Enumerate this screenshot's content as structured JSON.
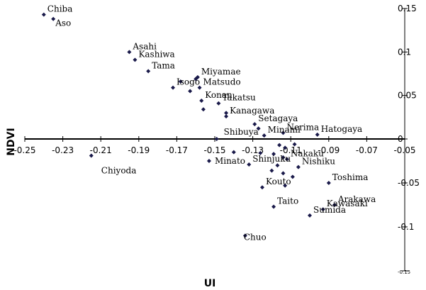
{
  "chart_data": {
    "type": "scatter",
    "title": "",
    "xlabel": "UI",
    "ylabel": "NDVI",
    "xlim": [
      -0.25,
      -0.05
    ],
    "ylim": [
      -0.15,
      0.15
    ],
    "x_ticks": [
      "-0.25",
      "-0.23",
      "-0.21",
      "-0.19",
      "-0.17",
      "-0.15",
      "-0.13",
      "-0.11",
      "-0.09",
      "-0.07",
      "-0.05"
    ],
    "y_ticks": [
      {
        "value": 0.15,
        "label": "0.15"
      },
      {
        "value": 0.1,
        "label": "0.1"
      },
      {
        "value": 0.05,
        "label": "0.05"
      },
      {
        "value": 0,
        "label": "0"
      },
      {
        "value": -0.05,
        "label": "-0.05"
      },
      {
        "value": -0.1,
        "label": "-0.1"
      },
      {
        "value": -0.15,
        "label": "-0.15"
      }
    ],
    "grid": false,
    "marker_color": "#1a1a4a",
    "points": [
      {
        "x": -0.24,
        "y": 0.143,
        "label": "Chiba"
      },
      {
        "x": -0.235,
        "y": 0.138,
        "label": "Aso"
      },
      {
        "x": -0.195,
        "y": 0.1,
        "label": "Asahi"
      },
      {
        "x": -0.192,
        "y": 0.091,
        "label": "Kashiwa"
      },
      {
        "x": -0.185,
        "y": 0.078,
        "label": "Tama"
      },
      {
        "x": -0.159,
        "y": 0.071,
        "label": "Miyamae"
      },
      {
        "x": -0.158,
        "y": 0.059,
        "label": "Matsudo"
      },
      {
        "x": -0.172,
        "y": 0.059,
        "label": "Isogo"
      },
      {
        "x": -0.157,
        "y": 0.044,
        "label": "Konan"
      },
      {
        "x": -0.148,
        "y": 0.041,
        "label": "Takatsu"
      },
      {
        "x": -0.144,
        "y": 0.026,
        "label": "Kanagawa"
      },
      {
        "x": -0.129,
        "y": 0.017,
        "label": "Setagaya"
      },
      {
        "x": -0.124,
        "y": 0.004,
        "label": "Minami"
      },
      {
        "x": -0.114,
        "y": 0.007,
        "label": "Nerima"
      },
      {
        "x": -0.096,
        "y": 0.005,
        "label": "Hatogaya"
      },
      {
        "x": -0.149,
        "y": 0.0,
        "label": "Shibuya"
      },
      {
        "x": -0.215,
        "y": -0.019,
        "label": "Chiyoda"
      },
      {
        "x": -0.153,
        "y": -0.025,
        "label": "Minato"
      },
      {
        "x": -0.132,
        "y": -0.029,
        "label": "Shinjuku"
      },
      {
        "x": -0.112,
        "y": -0.023,
        "label": "Nakaku"
      },
      {
        "x": -0.106,
        "y": -0.032,
        "label": "Nishiku"
      },
      {
        "x": -0.09,
        "y": -0.05,
        "label": "Toshima"
      },
      {
        "x": -0.125,
        "y": -0.055,
        "label": "Kouto"
      },
      {
        "x": -0.119,
        "y": -0.077,
        "label": "Taito"
      },
      {
        "x": -0.087,
        "y": -0.075,
        "label": "Arakawa"
      },
      {
        "x": -0.093,
        "y": -0.08,
        "label": "Kawasaki"
      },
      {
        "x": -0.1,
        "y": -0.087,
        "label": "Sumida"
      },
      {
        "x": -0.134,
        "y": -0.11,
        "label": "Chuo"
      },
      {
        "x": -0.168,
        "y": 0.066,
        "label": ""
      },
      {
        "x": -0.163,
        "y": 0.055,
        "label": ""
      },
      {
        "x": -0.16,
        "y": 0.069,
        "label": ""
      },
      {
        "x": -0.156,
        "y": 0.034,
        "label": ""
      },
      {
        "x": -0.144,
        "y": 0.03,
        "label": ""
      },
      {
        "x": -0.127,
        "y": 0.012,
        "label": ""
      },
      {
        "x": -0.116,
        "y": -0.007,
        "label": ""
      },
      {
        "x": -0.113,
        "y": -0.01,
        "label": ""
      },
      {
        "x": -0.108,
        "y": -0.006,
        "label": ""
      },
      {
        "x": -0.14,
        "y": -0.015,
        "label": ""
      },
      {
        "x": -0.126,
        "y": -0.016,
        "label": ""
      },
      {
        "x": -0.119,
        "y": -0.017,
        "label": ""
      },
      {
        "x": -0.114,
        "y": -0.021,
        "label": ""
      },
      {
        "x": -0.117,
        "y": -0.03,
        "label": ""
      },
      {
        "x": -0.12,
        "y": -0.036,
        "label": ""
      },
      {
        "x": -0.114,
        "y": -0.039,
        "label": ""
      },
      {
        "x": -0.109,
        "y": -0.043,
        "label": ""
      },
      {
        "x": -0.113,
        "y": -0.053,
        "label": ""
      }
    ]
  }
}
